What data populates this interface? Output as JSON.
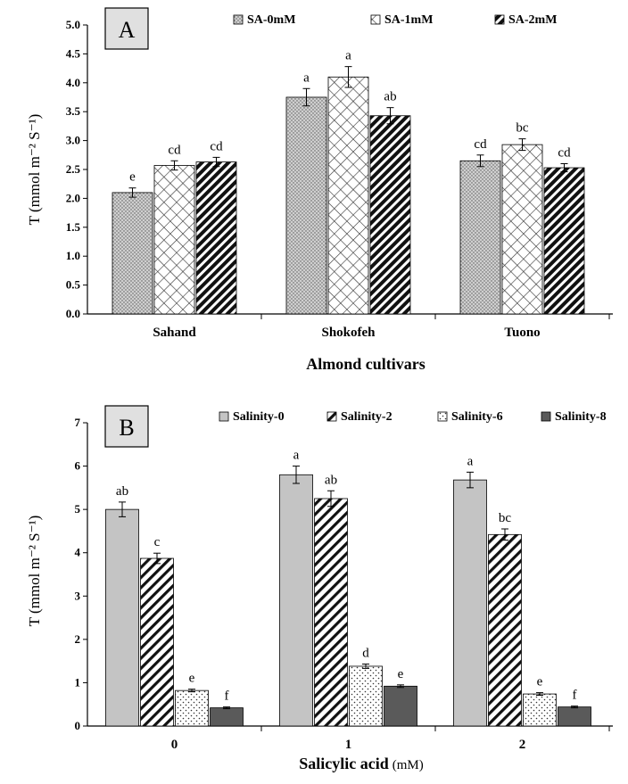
{
  "chart_data": [
    {
      "type": "bar",
      "panel_label": "A",
      "categories": [
        "Sahand",
        "Shokofeh",
        "Tuono"
      ],
      "xlabel": "Almond cultivars",
      "ylabel": "T (mmol m⁻² S⁻¹)",
      "ylim": [
        0,
        5.0
      ],
      "yticks": [
        "0.0",
        "0.5",
        "1.0",
        "1.5",
        "2.0",
        "2.5",
        "3.0",
        "3.5",
        "4.0",
        "4.5",
        "5.0"
      ],
      "grid": false,
      "legend_position": "top",
      "series": [
        {
          "name": "SA-0mM",
          "pattern": "dots",
          "values": [
            2.1,
            3.75,
            2.65
          ],
          "errors": [
            0.08,
            0.15,
            0.1
          ],
          "letters": [
            "e",
            "a",
            "cd"
          ]
        },
        {
          "name": "SA-1mM",
          "pattern": "crosshatch",
          "values": [
            2.57,
            4.1,
            2.93
          ],
          "errors": [
            0.08,
            0.18,
            0.1
          ],
          "letters": [
            "cd",
            "a",
            "bc"
          ]
        },
        {
          "name": "SA-2mM",
          "pattern": "thick-diagonal",
          "values": [
            2.63,
            3.43,
            2.53
          ],
          "errors": [
            0.08,
            0.14,
            0.07
          ],
          "letters": [
            "cd",
            "ab",
            "cd"
          ]
        }
      ]
    },
    {
      "type": "bar",
      "panel_label": "B",
      "categories": [
        "0",
        "1",
        "2"
      ],
      "xlabel": "Salicylic acid",
      "xlabel_unit": "(mM)",
      "ylabel": "T (mmol m⁻² S⁻¹)",
      "ylim": [
        0,
        7
      ],
      "yticks": [
        "0",
        "1",
        "2",
        "3",
        "4",
        "5",
        "6",
        "7"
      ],
      "grid": false,
      "legend_position": "top",
      "series": [
        {
          "name": "Salinity-0",
          "pattern": "solid-light",
          "values": [
            5.0,
            5.8,
            5.68
          ],
          "errors": [
            0.17,
            0.2,
            0.18
          ],
          "letters": [
            "ab",
            "a",
            "a"
          ]
        },
        {
          "name": "Salinity-2",
          "pattern": "diagonal",
          "values": [
            3.87,
            5.25,
            4.42
          ],
          "errors": [
            0.12,
            0.18,
            0.13
          ],
          "letters": [
            "c",
            "ab",
            "bc"
          ]
        },
        {
          "name": "Salinity-6",
          "pattern": "sparse-dots",
          "values": [
            0.82,
            1.38,
            0.74
          ],
          "errors": [
            0.03,
            0.05,
            0.03
          ],
          "letters": [
            "e",
            "d",
            "e"
          ]
        },
        {
          "name": "Salinity-8",
          "pattern": "solid-dark",
          "values": [
            0.42,
            0.92,
            0.44
          ],
          "errors": [
            0.02,
            0.03,
            0.02
          ],
          "letters": [
            "f",
            "e",
            "f"
          ]
        }
      ]
    }
  ]
}
